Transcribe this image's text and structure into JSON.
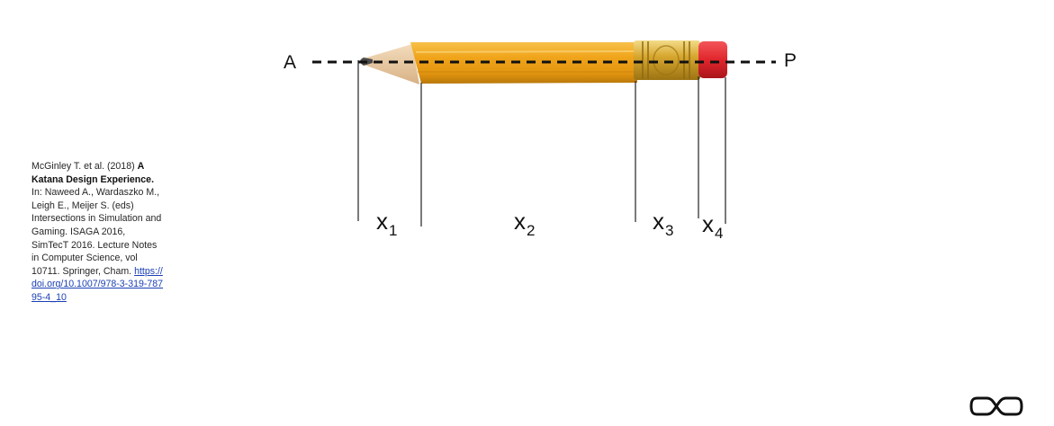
{
  "diagram": {
    "point_a": "A",
    "point_p": "P",
    "segments": [
      {
        "var": "x",
        "sub": "1"
      },
      {
        "var": "x",
        "sub": "2"
      },
      {
        "var": "x",
        "sub": "3"
      },
      {
        "var": "x",
        "sub": "4"
      }
    ]
  },
  "citation": {
    "authors": "McGinley T. et al. (2018) ",
    "title": "A Katana Design Experience.",
    "body": " In: Naweed A., Wardaszko M., Leigh E., Meijer S. (eds) Intersections in Simulation and Gaming. ISAGA 2016, SimTecT 2016. Lecture Notes in Computer Science, vol 10711. Springer, Cham. ",
    "link": "https://doi.org/10.1007/978-3-319-78795-4_10"
  },
  "colors": {
    "pencil_body": "#f0a51c",
    "pencil_shadow": "#c9830f",
    "ferrule": "#d9a62e",
    "eraser": "#e0262c",
    "wood": "#e9c9a0",
    "graphite": "#4a4a4a"
  },
  "logo": "infinity-logo-icon"
}
